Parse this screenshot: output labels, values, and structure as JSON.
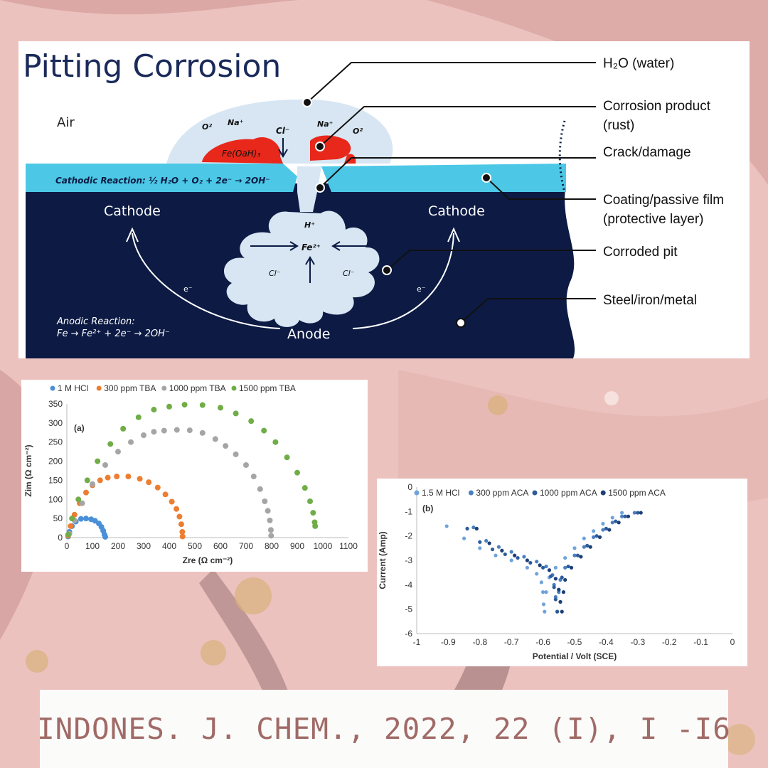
{
  "colors": {
    "metal": "#0c1a44",
    "film": "#4cc8e6",
    "water": "#d7e6f2",
    "rust": "#e8281a",
    "title": "#1a2a5a",
    "background_pink": "#ecc2bf",
    "citation_text": "#a06a66",
    "series_blue": "#4a90d9",
    "series_orange": "#ed7d31",
    "series_gray": "#a5a5a5",
    "series_green": "#70ad47"
  },
  "diagram": {
    "title": "Pitting Corrosion",
    "air": "Air",
    "cathode_left": "Cathode",
    "cathode_right": "Cathode",
    "anode": "Anode",
    "cathodic_reaction": "Cathodic Reaction: ½ H₂O + O₂ + 2e⁻ → 2OH⁻",
    "anodic_reaction_title": "Anodic Reaction:",
    "anodic_reaction_eq": "Fe → Fe²⁺ + 2e⁻ → 2OH⁻",
    "ions": {
      "o2_left": "O²",
      "na_left": "Na⁺",
      "cl_top": "Cl⁻",
      "na_right": "Na⁺",
      "o2_right": "O²",
      "rust_label": "Fe(OaH)₃",
      "h_plus": "H⁺",
      "fe_center": "Fe²⁺",
      "cl_left": "Cl⁻",
      "cl_right": "Cl⁻",
      "e_left": "e⁻",
      "e_right": "e⁻"
    },
    "callouts": {
      "water": "H₂O (water)",
      "corrosion_1": "Corrosion product",
      "corrosion_2": "(rust)",
      "crack": "Crack/damage",
      "coating_1": "Coating/passive film",
      "coating_2": "(protective layer)",
      "pit": "Corroded pit",
      "metal": "Steel/iron/metal"
    }
  },
  "chart_data": [
    {
      "type": "scatter",
      "panel_label": "(a)",
      "xlabel": "Zre (Ω cm⁻²)",
      "ylabel": "Zim (Ω cm⁻²)",
      "xlim": [
        0,
        1100
      ],
      "ylim": [
        0,
        350
      ],
      "x_ticks": [
        "0",
        "100",
        "200",
        "300",
        "400",
        "500",
        "600",
        "700",
        "800",
        "900",
        "1000",
        "1100"
      ],
      "y_ticks": [
        "0",
        "50",
        "100",
        "150",
        "200",
        "250",
        "300",
        "350"
      ],
      "legend_position": "top",
      "series": [
        {
          "name": "1 M HCl",
          "color": "#4a90d9",
          "x": [
            5,
            10,
            20,
            35,
            55,
            75,
            95,
            110,
            125,
            135,
            142,
            147,
            150
          ],
          "y": [
            3,
            15,
            30,
            42,
            49,
            50,
            48,
            44,
            37,
            28,
            18,
            8,
            2
          ]
        },
        {
          "name": "300 ppm TBA",
          "color": "#ed7d31",
          "x": [
            5,
            15,
            30,
            50,
            75,
            100,
            130,
            160,
            195,
            240,
            285,
            320,
            355,
            385,
            410,
            428,
            440,
            447,
            451,
            452
          ],
          "y": [
            5,
            30,
            60,
            90,
            118,
            137,
            150,
            157,
            160,
            160,
            154,
            145,
            131,
            113,
            94,
            75,
            55,
            35,
            15,
            3
          ]
        },
        {
          "name": "1000 ppm TBA",
          "color": "#a5a5a5",
          "x": [
            10,
            30,
            60,
            100,
            150,
            200,
            250,
            300,
            340,
            380,
            430,
            480,
            530,
            580,
            620,
            660,
            700,
            730,
            755,
            773,
            785,
            793,
            797,
            798
          ],
          "y": [
            10,
            45,
            90,
            140,
            190,
            225,
            250,
            268,
            277,
            280,
            282,
            281,
            274,
            258,
            240,
            218,
            190,
            160,
            127,
            95,
            70,
            45,
            20,
            5
          ]
        },
        {
          "name": "1500 ppm TBA",
          "color": "#70ad47",
          "x": [
            5,
            20,
            45,
            80,
            120,
            170,
            220,
            280,
            340,
            400,
            460,
            530,
            600,
            660,
            720,
            770,
            815,
            860,
            900,
            930,
            950,
            962,
            968,
            970
          ],
          "y": [
            8,
            50,
            100,
            150,
            200,
            245,
            285,
            315,
            335,
            343,
            348,
            347,
            340,
            325,
            305,
            280,
            250,
            210,
            170,
            130,
            95,
            65,
            40,
            30
          ]
        }
      ]
    },
    {
      "type": "line",
      "panel_label": "(b)",
      "xlabel": "Potential / Volt (SCE)",
      "ylabel": "Current (Amp)",
      "xlim": [
        -1,
        0
      ],
      "ylim": [
        -6,
        0
      ],
      "x_ticks": [
        "-1",
        "-0.9",
        "-0.8",
        "-0.7",
        "-0.6",
        "-0.5",
        "-0.4",
        "-0.3",
        "-0.2",
        "-0.1",
        "0"
      ],
      "y_ticks": [
        "0",
        "-1",
        "-2",
        "-3",
        "-4",
        "-5",
        "-6"
      ],
      "legend_position": "top",
      "series": [
        {
          "name": "1.5 M HCl",
          "color": "#6fa3dc",
          "x": [
            -0.905,
            -0.85,
            -0.8,
            -0.75,
            -0.7,
            -0.65,
            -0.62,
            -0.605,
            -0.6,
            -0.598,
            -0.595,
            -0.59,
            -0.58,
            -0.56,
            -0.53,
            -0.5,
            -0.47,
            -0.44,
            -0.41,
            -0.38,
            -0.35
          ],
          "y": [
            -1.6,
            -2.1,
            -2.5,
            -2.8,
            -3.0,
            -3.3,
            -3.55,
            -3.9,
            -4.3,
            -4.8,
            -5.1,
            -4.3,
            -3.7,
            -3.3,
            -2.9,
            -2.5,
            -2.1,
            -1.8,
            -1.5,
            -1.25,
            -1.05
          ]
        },
        {
          "name": "300 ppm ACA",
          "color": "#4a7fc0",
          "x": [
            -0.82,
            -0.78,
            -0.74,
            -0.7,
            -0.66,
            -0.62,
            -0.59,
            -0.57,
            -0.565,
            -0.56,
            -0.555,
            -0.55,
            -0.545,
            -0.53,
            -0.5,
            -0.47,
            -0.44,
            -0.41,
            -0.38,
            -0.35,
            -0.31
          ],
          "y": [
            -1.65,
            -2.2,
            -2.45,
            -2.65,
            -2.85,
            -3.05,
            -3.25,
            -3.6,
            -4.0,
            -4.5,
            -5.1,
            -4.3,
            -3.8,
            -3.3,
            -2.8,
            -2.45,
            -2.05,
            -1.75,
            -1.45,
            -1.2,
            -1.05
          ]
        },
        {
          "name": "1000 ppm ACA",
          "color": "#2e5b9a",
          "x": [
            -0.84,
            -0.8,
            -0.76,
            -0.72,
            -0.68,
            -0.64,
            -0.6,
            -0.575,
            -0.565,
            -0.56,
            -0.555,
            -0.55,
            -0.54,
            -0.52,
            -0.49,
            -0.46,
            -0.43,
            -0.4,
            -0.37,
            -0.34,
            -0.3
          ],
          "y": [
            -1.7,
            -2.25,
            -2.55,
            -2.75,
            -2.9,
            -3.1,
            -3.3,
            -3.65,
            -4.1,
            -4.6,
            -5.1,
            -4.2,
            -3.7,
            -3.25,
            -2.8,
            -2.4,
            -2.0,
            -1.7,
            -1.4,
            -1.2,
            -1.05
          ]
        },
        {
          "name": "1500 ppm ACA",
          "color": "#1b3f78",
          "x": [
            -0.81,
            -0.77,
            -0.73,
            -0.69,
            -0.65,
            -0.61,
            -0.58,
            -0.56,
            -0.55,
            -0.545,
            -0.54,
            -0.535,
            -0.53,
            -0.51,
            -0.48,
            -0.45,
            -0.42,
            -0.39,
            -0.36,
            -0.33,
            -0.29
          ],
          "y": [
            -1.7,
            -2.3,
            -2.6,
            -2.8,
            -3.0,
            -3.2,
            -3.4,
            -3.75,
            -4.2,
            -4.7,
            -5.1,
            -4.3,
            -3.8,
            -3.3,
            -2.85,
            -2.45,
            -2.05,
            -1.75,
            -1.45,
            -1.2,
            -1.05
          ]
        }
      ]
    }
  ],
  "citation": "INDONES. J. CHEM., 2022, 22 (I), I -I6"
}
